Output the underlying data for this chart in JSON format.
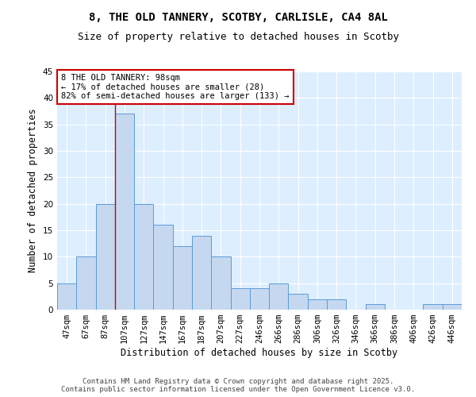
{
  "title_line1": "8, THE OLD TANNERY, SCOTBY, CARLISLE, CA4 8AL",
  "title_line2": "Size of property relative to detached houses in Scotby",
  "xlabel": "Distribution of detached houses by size in Scotby",
  "ylabel": "Number of detached properties",
  "categories": [
    "47sqm",
    "67sqm",
    "87sqm",
    "107sqm",
    "127sqm",
    "147sqm",
    "167sqm",
    "187sqm",
    "207sqm",
    "227sqm",
    "246sqm",
    "266sqm",
    "286sqm",
    "306sqm",
    "326sqm",
    "346sqm",
    "366sqm",
    "386sqm",
    "406sqm",
    "426sqm",
    "446sqm"
  ],
  "values": [
    5,
    10,
    20,
    37,
    20,
    16,
    12,
    14,
    10,
    4,
    4,
    5,
    3,
    2,
    2,
    0,
    1,
    0,
    0,
    1,
    1
  ],
  "bar_color": "#c5d8f0",
  "bar_edge_color": "#5b9bd5",
  "red_line_x": 2.5,
  "annotation_text": "8 THE OLD TANNERY: 98sqm\n← 17% of detached houses are smaller (28)\n82% of semi-detached houses are larger (133) →",
  "annotation_box_color": "#ffffff",
  "annotation_box_edge": "#cc0000",
  "ylim": [
    0,
    45
  ],
  "yticks": [
    0,
    5,
    10,
    15,
    20,
    25,
    30,
    35,
    40,
    45
  ],
  "bg_color": "#ddeeff",
  "footer": "Contains HM Land Registry data © Crown copyright and database right 2025.\nContains public sector information licensed under the Open Government Licence v3.0.",
  "title_fontsize": 10,
  "subtitle_fontsize": 9,
  "axis_label_fontsize": 8.5,
  "tick_fontsize": 7.5,
  "footer_fontsize": 6.5,
  "annotation_fontsize": 7.5
}
